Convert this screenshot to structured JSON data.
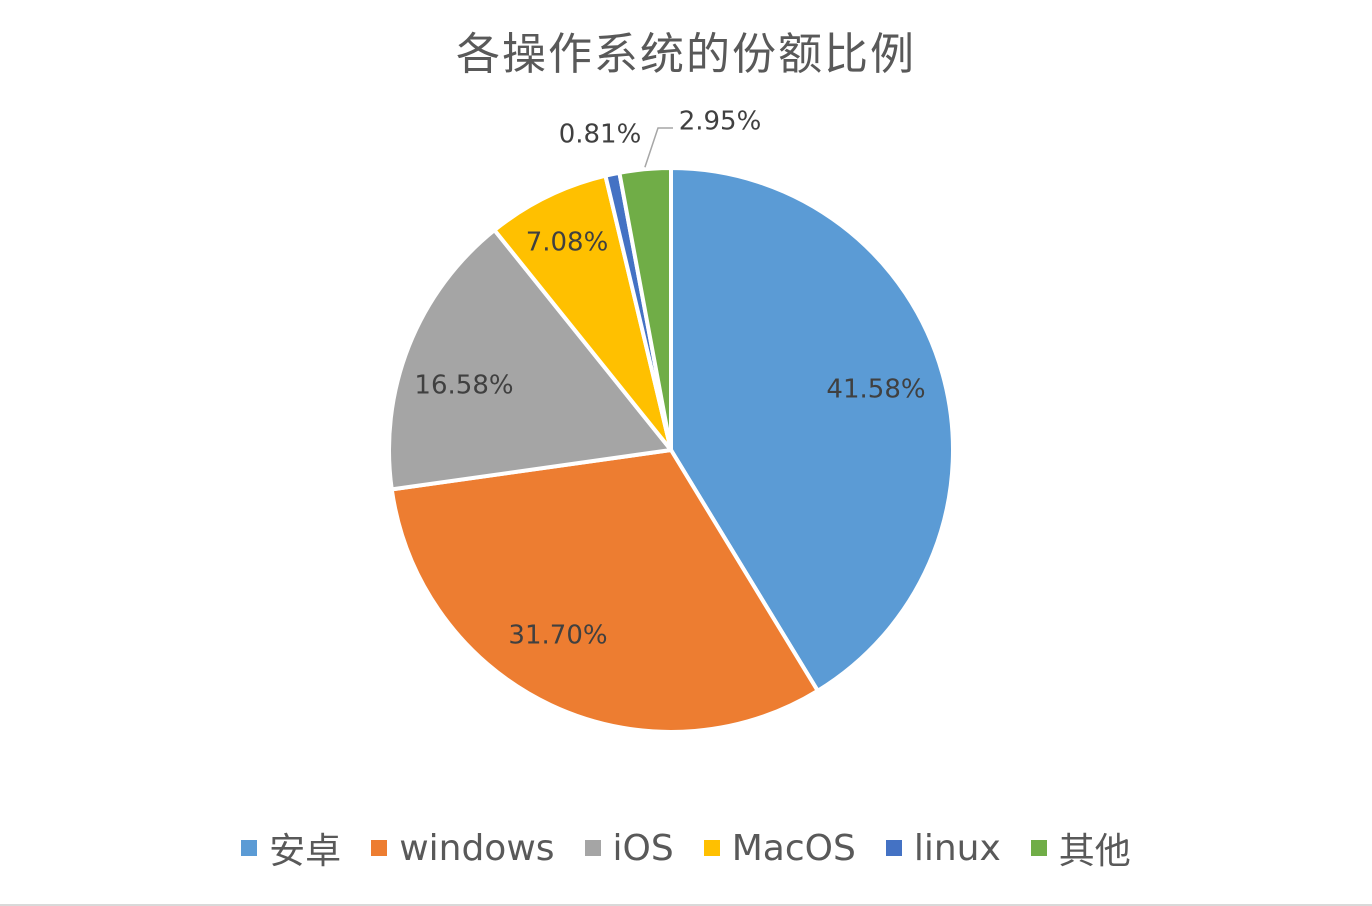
{
  "chart_data": {
    "type": "pie",
    "title": "各操作系统的份额比例",
    "categories": [
      "安卓",
      "windows",
      "iOS",
      "MacOS",
      "linux",
      "其他"
    ],
    "values": [
      41.58,
      31.7,
      16.58,
      7.08,
      0.81,
      2.95
    ],
    "labels": [
      "41.58%",
      "31.70%",
      "16.58%",
      "7.08%",
      "0.81%",
      "2.95%"
    ],
    "colors": [
      "#5B9BD5",
      "#ED7D31",
      "#A5A5A5",
      "#FFC000",
      "#4472C4",
      "#70AD47"
    ],
    "legend_position": "bottom",
    "start_angle": "12 o'clock",
    "direction": "clockwise"
  }
}
